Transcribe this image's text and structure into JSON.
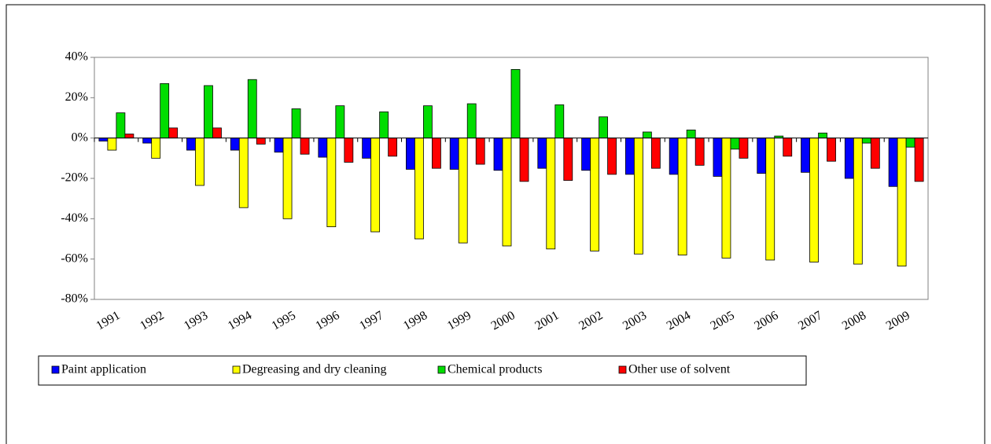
{
  "chart_data": {
    "type": "bar",
    "categories": [
      "1991",
      "1992",
      "1993",
      "1994",
      "1995",
      "1996",
      "1997",
      "1998",
      "1999",
      "2000",
      "2001",
      "2002",
      "2003",
      "2004",
      "2005",
      "2006",
      "2007",
      "2008",
      "2009"
    ],
    "series": [
      {
        "name": "Paint application",
        "color": "#0000ff",
        "values": [
          -1.5,
          -2.5,
          -6,
          -6,
          -7,
          -9.5,
          -10,
          -15.5,
          -15.5,
          -16,
          -15,
          -16,
          -18,
          -18,
          -19,
          -17.5,
          -17,
          -20,
          -24
        ]
      },
      {
        "name": "Degreasing and dry cleaning",
        "color": "#ffff00",
        "values": [
          -6,
          -10,
          -23.5,
          -34.5,
          -40,
          -44,
          -46.5,
          -50,
          -52,
          -53.5,
          -55,
          -56,
          -57.5,
          -58,
          -59.5,
          -60.5,
          -61.5,
          -62.5,
          -63.5
        ]
      },
      {
        "name": "Chemical products",
        "color": "#00dd00",
        "values": [
          12.5,
          27,
          26,
          29,
          14.5,
          16,
          13,
          16,
          17,
          34,
          16.5,
          10.5,
          3,
          4,
          -5.5,
          1,
          2.5,
          -2.5,
          -4.5
        ]
      },
      {
        "name": "Other use of solvent",
        "color": "#ff0000",
        "values": [
          2,
          5,
          5,
          -3,
          -8,
          -12,
          -9,
          -15,
          -13,
          -21.5,
          -21,
          -18,
          -15,
          -13.5,
          -10,
          -9,
          -11.5,
          -15,
          -21.5
        ]
      }
    ],
    "ylim": [
      -80,
      40
    ],
    "yticks": [
      {
        "value": -80,
        "label": "-80%"
      },
      {
        "value": -60,
        "label": "-60%"
      },
      {
        "value": -40,
        "label": "-40%"
      },
      {
        "value": -20,
        "label": "-20%"
      },
      {
        "value": 0,
        "label": "0%"
      },
      {
        "value": 20,
        "label": "20%"
      },
      {
        "value": 40,
        "label": "40%"
      }
    ],
    "legend": "bottom"
  }
}
